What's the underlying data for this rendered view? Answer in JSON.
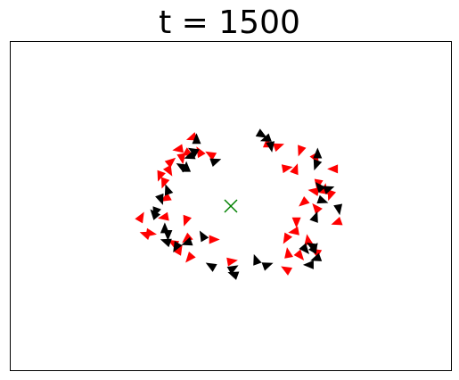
{
  "chart_data": {
    "type": "scatter",
    "title": "t = 1500",
    "xlabel": "",
    "ylabel": "",
    "xlim": [
      0,
      100
    ],
    "ylim": [
      0,
      100
    ],
    "axis_ticks": false,
    "grid": false,
    "center": {
      "x": 50,
      "y": 50,
      "marker": "x",
      "color": "#008000"
    },
    "series": [
      {
        "color": "#ff0000",
        "points": [
          {
            "x": 41.2,
            "y": 70.8,
            "angle": 200
          },
          {
            "x": 45.4,
            "y": 65.7,
            "angle": 150
          },
          {
            "x": 42.9,
            "y": 66.5,
            "angle": 120
          },
          {
            "x": 36.4,
            "y": 63.5,
            "angle": 40
          },
          {
            "x": 33.9,
            "y": 59.2,
            "angle": 250
          },
          {
            "x": 36.0,
            "y": 60.7,
            "angle": 300
          },
          {
            "x": 38.9,
            "y": 64.6,
            "angle": 280
          },
          {
            "x": 40.4,
            "y": 66.0,
            "angle": 330
          },
          {
            "x": 38.1,
            "y": 67.3,
            "angle": 190
          },
          {
            "x": 34.8,
            "y": 57.1,
            "angle": 250
          },
          {
            "x": 35.2,
            "y": 52.3,
            "angle": 210
          },
          {
            "x": 29.6,
            "y": 46.6,
            "angle": 60
          },
          {
            "x": 31.8,
            "y": 41.7,
            "angle": 350
          },
          {
            "x": 30.6,
            "y": 41.4,
            "angle": 160
          },
          {
            "x": 34.8,
            "y": 46.6,
            "angle": 190
          },
          {
            "x": 39.8,
            "y": 45.6,
            "angle": 250
          },
          {
            "x": 36.9,
            "y": 38.8,
            "angle": 150
          },
          {
            "x": 40.0,
            "y": 40.0,
            "angle": 220
          },
          {
            "x": 38.3,
            "y": 36.7,
            "angle": 60
          },
          {
            "x": 40.6,
            "y": 34.2,
            "angle": 230
          },
          {
            "x": 46.1,
            "y": 39.8,
            "angle": 0
          },
          {
            "x": 50.2,
            "y": 33.2,
            "angle": 10
          },
          {
            "x": 58.3,
            "y": 69.2,
            "angle": 90
          },
          {
            "x": 60.8,
            "y": 68.3,
            "angle": 20
          },
          {
            "x": 65.8,
            "y": 66.9,
            "angle": 250
          },
          {
            "x": 69.3,
            "y": 64.6,
            "angle": 300
          },
          {
            "x": 62.7,
            "y": 61.6,
            "angle": 10
          },
          {
            "x": 64.7,
            "y": 61.2,
            "angle": 70
          },
          {
            "x": 73.3,
            "y": 61.3,
            "angle": 180
          },
          {
            "x": 69.8,
            "y": 56.7,
            "angle": 260
          },
          {
            "x": 68.9,
            "y": 54.6,
            "angle": 170
          },
          {
            "x": 71.3,
            "y": 55.1,
            "angle": 80
          },
          {
            "x": 72.6,
            "y": 53.4,
            "angle": 250
          },
          {
            "x": 66.5,
            "y": 51.1,
            "angle": 220
          },
          {
            "x": 69.4,
            "y": 49.4,
            "angle": 130
          },
          {
            "x": 74.1,
            "y": 45.0,
            "angle": 200
          },
          {
            "x": 64.9,
            "y": 45.2,
            "angle": 270
          },
          {
            "x": 64.4,
            "y": 42.2,
            "angle": 190
          },
          {
            "x": 62.6,
            "y": 40.1,
            "angle": 240
          },
          {
            "x": 63.0,
            "y": 35.6,
            "angle": 100
          },
          {
            "x": 65.7,
            "y": 34.9,
            "angle": 310
          },
          {
            "x": 69.3,
            "y": 36.1,
            "angle": 150
          },
          {
            "x": 67.5,
            "y": 39.6,
            "angle": 100
          },
          {
            "x": 62.6,
            "y": 30.7,
            "angle": 150
          }
        ]
      },
      {
        "color": "#000000",
        "points": [
          {
            "x": 42.2,
            "y": 70.3,
            "angle": 90
          },
          {
            "x": 41.5,
            "y": 66.8,
            "angle": 150
          },
          {
            "x": 40.7,
            "y": 65.1,
            "angle": 200
          },
          {
            "x": 46.5,
            "y": 63.7,
            "angle": 20
          },
          {
            "x": 39.9,
            "y": 61.8,
            "angle": 90
          },
          {
            "x": 38.8,
            "y": 62.1,
            "angle": 150
          },
          {
            "x": 35.6,
            "y": 54.9,
            "angle": 110
          },
          {
            "x": 34.1,
            "y": 52.1,
            "angle": 290
          },
          {
            "x": 32.9,
            "y": 48.2,
            "angle": 250
          },
          {
            "x": 32.6,
            "y": 47.6,
            "angle": 130
          },
          {
            "x": 35.0,
            "y": 43.1,
            "angle": 90
          },
          {
            "x": 35.7,
            "y": 41.3,
            "angle": 270
          },
          {
            "x": 35.3,
            "y": 39.2,
            "angle": 160
          },
          {
            "x": 37.6,
            "y": 37.5,
            "angle": 240
          },
          {
            "x": 40.1,
            "y": 38.8,
            "angle": 200
          },
          {
            "x": 43.6,
            "y": 40.9,
            "angle": 120
          },
          {
            "x": 45.5,
            "y": 31.8,
            "angle": 150
          },
          {
            "x": 50.5,
            "y": 31.0,
            "angle": 30
          },
          {
            "x": 50.6,
            "y": 29.2,
            "angle": 160
          },
          {
            "x": 55.7,
            "y": 33.6,
            "angle": 110
          },
          {
            "x": 58.3,
            "y": 32.0,
            "angle": 20
          },
          {
            "x": 57.0,
            "y": 71.7,
            "angle": 330
          },
          {
            "x": 58.0,
            "y": 70.4,
            "angle": 200
          },
          {
            "x": 59.1,
            "y": 68.2,
            "angle": 280
          },
          {
            "x": 69.7,
            "y": 65.9,
            "angle": 90
          },
          {
            "x": 69.4,
            "y": 62.6,
            "angle": 250
          },
          {
            "x": 70.1,
            "y": 55.9,
            "angle": 130
          },
          {
            "x": 72.2,
            "y": 55.3,
            "angle": 20
          },
          {
            "x": 70.8,
            "y": 51.6,
            "angle": 340
          },
          {
            "x": 74.5,
            "y": 49.1,
            "angle": 280
          },
          {
            "x": 69.2,
            "y": 46.6,
            "angle": 70
          },
          {
            "x": 68.4,
            "y": 37.9,
            "angle": 150
          },
          {
            "x": 69.0,
            "y": 37.2,
            "angle": 60
          },
          {
            "x": 66.9,
            "y": 36.8,
            "angle": 310
          },
          {
            "x": 69.4,
            "y": 34.0,
            "angle": 200
          },
          {
            "x": 67.8,
            "y": 32.1,
            "angle": 180
          }
        ]
      }
    ]
  }
}
